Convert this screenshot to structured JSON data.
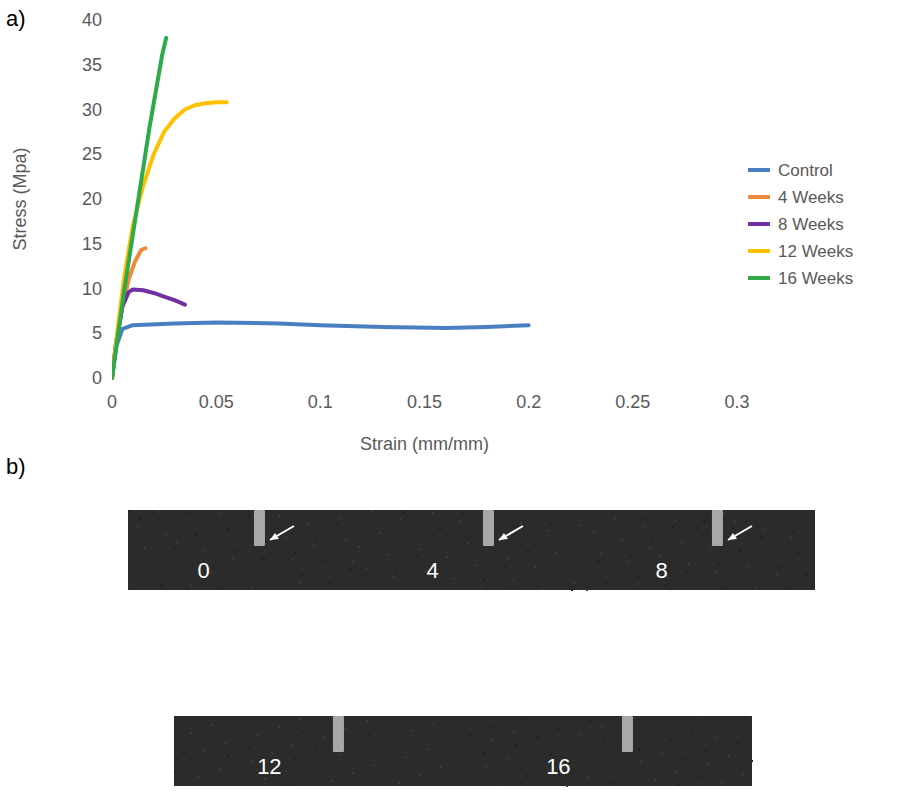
{
  "chart_data": {
    "type": "line",
    "x_label": "Strain (mm/mm)",
    "y_label": "Stress (Mpa)",
    "xlim": [
      0,
      0.3
    ],
    "xticks": [
      0,
      0.05,
      0.1,
      0.15,
      0.2,
      0.25,
      0.3
    ],
    "ylim": [
      0,
      40
    ],
    "yticks": [
      0,
      5,
      10,
      15,
      20,
      25,
      30,
      35,
      40
    ],
    "grid": false,
    "legend": "right",
    "series": [
      {
        "name": "Control",
        "color": "#4a7fc1",
        "x": [
          0,
          0.002,
          0.005,
          0.01,
          0.03,
          0.05,
          0.08,
          0.1,
          0.13,
          0.16,
          0.18,
          0.2
        ],
        "values": [
          0,
          3.5,
          5.5,
          5.9,
          6.1,
          6.2,
          6.1,
          5.9,
          5.7,
          5.6,
          5.7,
          5.9
        ]
      },
      {
        "name": "4 Weeks",
        "color": "#ed8a3e",
        "x": [
          0,
          0.002,
          0.005,
          0.008,
          0.011,
          0.014,
          0.016
        ],
        "values": [
          0,
          4,
          8,
          11,
          13,
          14.3,
          14.5
        ]
      },
      {
        "name": "8 Weeks",
        "color": "#7030a0",
        "x": [
          0,
          0.002,
          0.005,
          0.008,
          0.01,
          0.015,
          0.02,
          0.025,
          0.03,
          0.035
        ],
        "values": [
          0,
          4,
          8,
          9.6,
          9.9,
          9.8,
          9.5,
          9.1,
          8.7,
          8.2
        ]
      },
      {
        "name": "12 Weeks",
        "color": "#ffc000",
        "x": [
          0,
          0.003,
          0.006,
          0.01,
          0.015,
          0.02,
          0.025,
          0.03,
          0.035,
          0.04,
          0.045,
          0.05,
          0.055
        ],
        "values": [
          0,
          6,
          11.5,
          17,
          21.5,
          25,
          27.5,
          29,
          30,
          30.5,
          30.7,
          30.8,
          30.8
        ]
      },
      {
        "name": "16 Weeks",
        "color": "#2eaa4a",
        "x": [
          0,
          0.003,
          0.006,
          0.01,
          0.014,
          0.018,
          0.021,
          0.024,
          0.026
        ],
        "values": [
          0,
          5,
          10,
          16,
          22,
          28,
          32,
          36,
          38
        ]
      }
    ]
  },
  "panels": [
    "a)",
    "b)"
  ],
  "photos": [
    {
      "label": "0",
      "arrow": true
    },
    {
      "label": "4",
      "arrow": true
    },
    {
      "label": "8",
      "arrow": true
    },
    {
      "label": "12",
      "arrow": false
    },
    {
      "label": "16",
      "arrow": false
    }
  ]
}
